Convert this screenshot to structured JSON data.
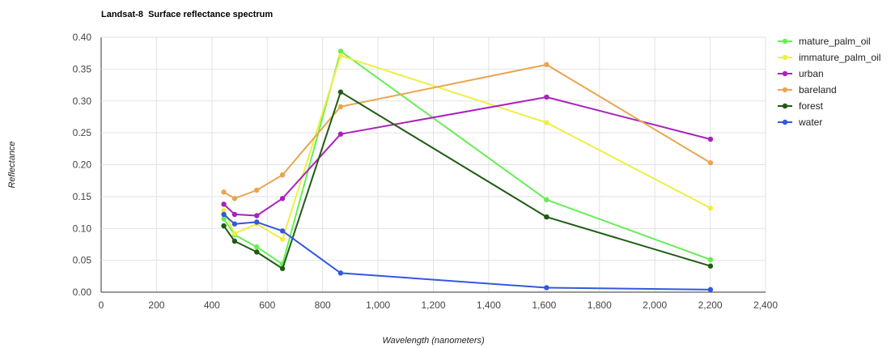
{
  "chart_data": {
    "type": "line",
    "title": "Landsat-8  Surface reflectance spectrum",
    "xlabel": "Wavelength (nanometers)",
    "ylabel": "Reflectance",
    "xlim": [
      0,
      2400
    ],
    "ylim": [
      0,
      0.4
    ],
    "x_ticks": [
      "0",
      "200",
      "400",
      "600",
      "800",
      "1,000",
      "1,200",
      "1,400",
      "1,600",
      "1,800",
      "2,000",
      "2,200",
      "2,400"
    ],
    "y_ticks": [
      "0.00",
      "0.05",
      "0.10",
      "0.15",
      "0.20",
      "0.25",
      "0.30",
      "0.35",
      "0.40"
    ],
    "grid": true,
    "legend_position": "right",
    "x": [
      443,
      482,
      562,
      655,
      865,
      1609,
      2201
    ],
    "series": [
      {
        "name": "mature_palm_oil",
        "color": "#66ee55",
        "values": [
          0.115,
          0.09,
          0.071,
          0.044,
          0.378,
          0.145,
          0.051
        ]
      },
      {
        "name": "immature_palm_oil",
        "color": "#eeee44",
        "values": [
          0.128,
          0.092,
          0.107,
          0.083,
          0.371,
          0.266,
          0.132
        ]
      },
      {
        "name": "urban",
        "color": "#aa22bb",
        "values": [
          0.138,
          0.122,
          0.12,
          0.147,
          0.248,
          0.306,
          0.24
        ]
      },
      {
        "name": "bareland",
        "color": "#e8a650",
        "values": [
          0.157,
          0.147,
          0.16,
          0.184,
          0.291,
          0.357,
          0.203
        ]
      },
      {
        "name": "forest",
        "color": "#1f5c12",
        "values": [
          0.104,
          0.08,
          0.063,
          0.037,
          0.314,
          0.118,
          0.041
        ]
      },
      {
        "name": "water",
        "color": "#3358dd",
        "values": [
          0.122,
          0.107,
          0.11,
          0.096,
          0.03,
          0.007,
          0.004
        ]
      }
    ]
  }
}
